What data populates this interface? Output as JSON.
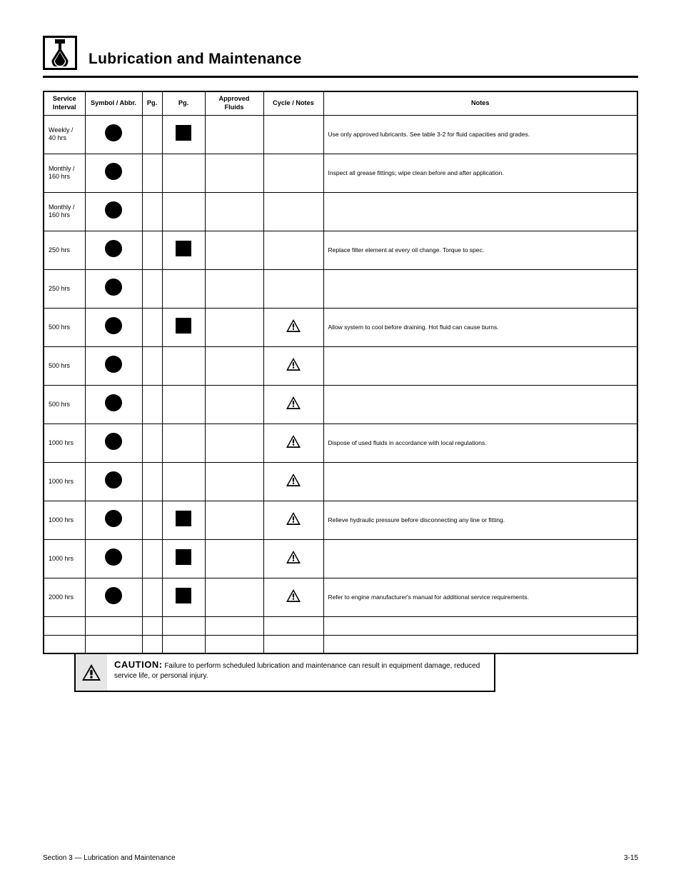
{
  "header": {
    "title": "Lubrication and Maintenance"
  },
  "columns": {
    "interval": "Service Interval",
    "sym": "Symbol / Abbr.",
    "pg": "Pg.",
    "pg2": "Pg.",
    "af": "Approved Fluids",
    "cyc": "Cycle / Notes",
    "notes": "Notes"
  },
  "rows": [
    {
      "interval": "Weekly / 40 hrs",
      "sym_dot": true,
      "sq": true,
      "warn": false,
      "note": "Use only approved lubricants. See table 3-2 for fluid capacities and grades."
    },
    {
      "interval": "Monthly / 160 hrs",
      "sym_dot": true,
      "sq": false,
      "warn": false,
      "note": "Inspect all grease fittings; wipe clean before and after application."
    },
    {
      "interval": "Monthly / 160 hrs",
      "sym_dot": true,
      "sq": false,
      "warn": false,
      "note": ""
    },
    {
      "interval": "250 hrs",
      "sym_dot": true,
      "sq": true,
      "warn": false,
      "note": "Replace filter element at every oil change. Torque to spec."
    },
    {
      "interval": "250 hrs",
      "sym_dot": true,
      "sq": false,
      "warn": false,
      "note": ""
    },
    {
      "interval": "500 hrs",
      "sym_dot": true,
      "sq": true,
      "warn": true,
      "note": "Allow system to cool before draining. Hot fluid can cause burns."
    },
    {
      "interval": "500 hrs",
      "sym_dot": true,
      "sq": false,
      "warn": true,
      "note": ""
    },
    {
      "interval": "500 hrs",
      "sym_dot": true,
      "sq": false,
      "warn": true,
      "note": ""
    },
    {
      "interval": "1000 hrs",
      "sym_dot": true,
      "sq": false,
      "warn": true,
      "note": "Dispose of used fluids in accordance with local regulations."
    },
    {
      "interval": "1000 hrs",
      "sym_dot": true,
      "sq": false,
      "warn": true,
      "note": ""
    },
    {
      "interval": "1000 hrs",
      "sym_dot": true,
      "sq": true,
      "warn": true,
      "note": "Relieve hydraulic pressure before disconnecting any line or fitting."
    },
    {
      "interval": "1000 hrs",
      "sym_dot": true,
      "sq": true,
      "warn": true,
      "note": ""
    },
    {
      "interval": "2000 hrs",
      "sym_dot": true,
      "sq": true,
      "warn": true,
      "note": "Refer to engine manufacturer's manual for additional service requirements."
    }
  ],
  "caution": {
    "label": "CAUTION:",
    "text": "Failure to perform scheduled lubrication and maintenance can result in equipment damage, reduced service life, or personal injury."
  },
  "footer": {
    "left": "Section 3 — Lubrication and Maintenance",
    "right": "3-15"
  },
  "symbols": {
    "dot_color": "#000000",
    "square_color": "#000000",
    "border_color": "#000000",
    "background": "#ffffff"
  }
}
